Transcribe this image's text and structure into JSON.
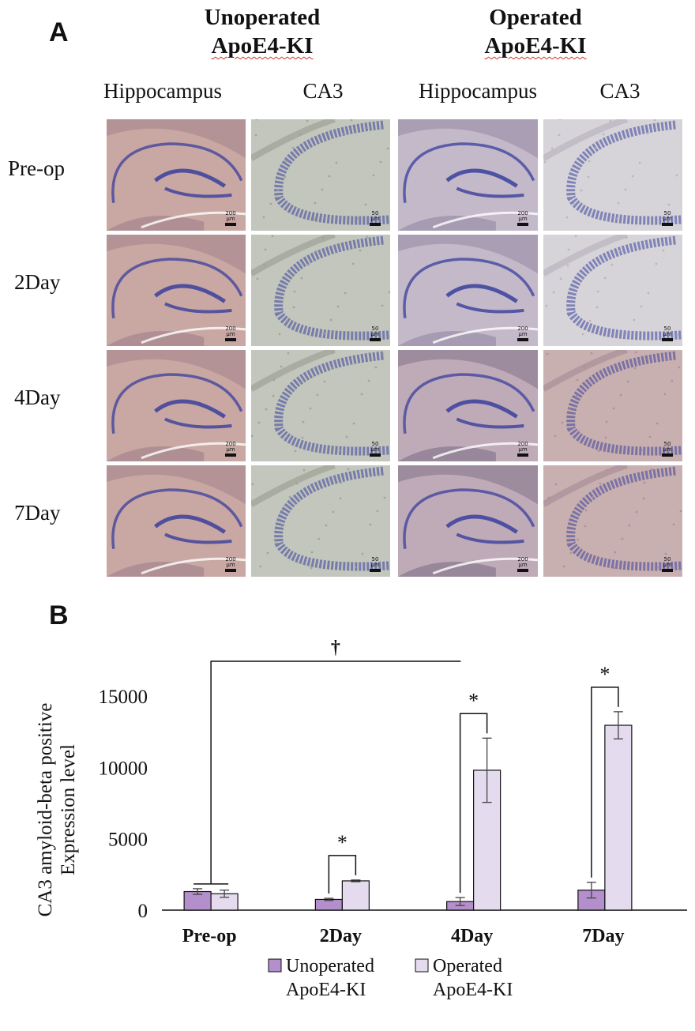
{
  "panel_a": {
    "letter": "A",
    "groups": [
      {
        "line1": "Unoperated",
        "line2": "ApoE4-KI"
      },
      {
        "line1": "Operated",
        "line2": "ApoE4-KI"
      }
    ],
    "columns": [
      "Hippocampus",
      "CA3",
      "Hippocampus",
      "CA3"
    ],
    "rows": [
      "Pre-op",
      "2Day",
      "4Day",
      "7Day"
    ],
    "scale_bars": {
      "hippocampus": "200 μm",
      "ca3": "50 μm"
    }
  },
  "panel_b": {
    "letter": "B"
  },
  "chart_data": {
    "type": "bar",
    "title": "",
    "xlabel": "",
    "ylabel": "CA3 amyloid-beta positive Expression level",
    "ylabel_lines": [
      "CA3 amyloid-beta positive",
      "Expression level"
    ],
    "categories": [
      "Pre-op",
      "2Day",
      "4Day",
      "7Day"
    ],
    "ylim": [
      0,
      15000
    ],
    "yticks": [
      0,
      5000,
      10000,
      15000
    ],
    "grid": false,
    "legend": "bottom",
    "series": [
      {
        "name": "Unoperated ApoE4-KI",
        "legend_lines": [
          "Unoperated",
          "ApoE4-KI"
        ],
        "color": "#b38fcb",
        "values": [
          1300,
          750,
          600,
          1400
        ],
        "errors": [
          200,
          80,
          280,
          550
        ]
      },
      {
        "name": "Operated ApoE4-KI",
        "legend_lines": [
          "Operated",
          "ApoE4-KI"
        ],
        "color": "#e4dcee",
        "values": [
          1150,
          2050,
          9800,
          12950
        ],
        "errors": [
          250,
          60,
          2250,
          950
        ]
      }
    ],
    "annotations": [
      {
        "text": "*",
        "type": "significance",
        "category": "2Day",
        "between": "series"
      },
      {
        "text": "*",
        "type": "significance",
        "category": "4Day",
        "between": "series"
      },
      {
        "text": "*",
        "type": "significance",
        "category": "7Day",
        "between": "series"
      },
      {
        "text": "†",
        "type": "significance",
        "from": "Pre-op",
        "to": "4Day",
        "series": "Operated ApoE4-KI"
      }
    ]
  },
  "colors": {
    "stain_blue": "#3a3f9c",
    "axis": "#111111"
  }
}
